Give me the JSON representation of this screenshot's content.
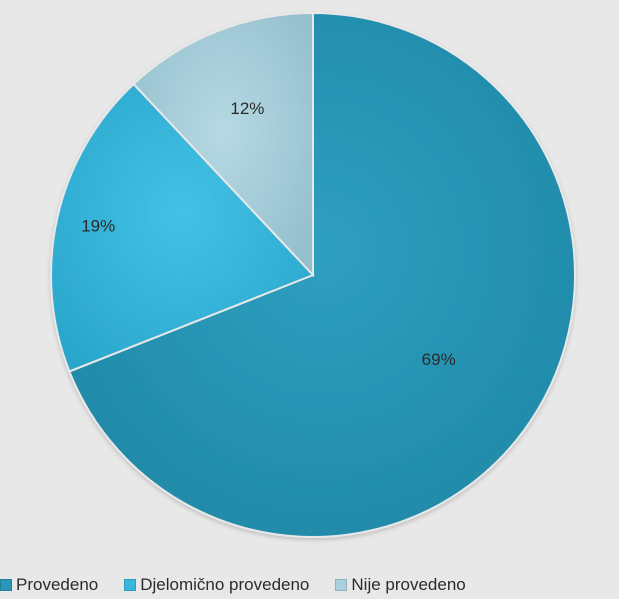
{
  "chart_data": {
    "type": "pie",
    "title": "",
    "categories": [
      "Provedeno",
      "Djelomično provedeno",
      "Nije provedeno"
    ],
    "values": [
      69,
      19,
      12
    ],
    "labels": [
      "69%",
      "19%",
      "12%"
    ],
    "colors": [
      "#2a96b6",
      "#38b7dc",
      "#a9d0dc"
    ],
    "start_angle_deg": 0,
    "direction": "clockwise",
    "legend_position": "bottom"
  }
}
